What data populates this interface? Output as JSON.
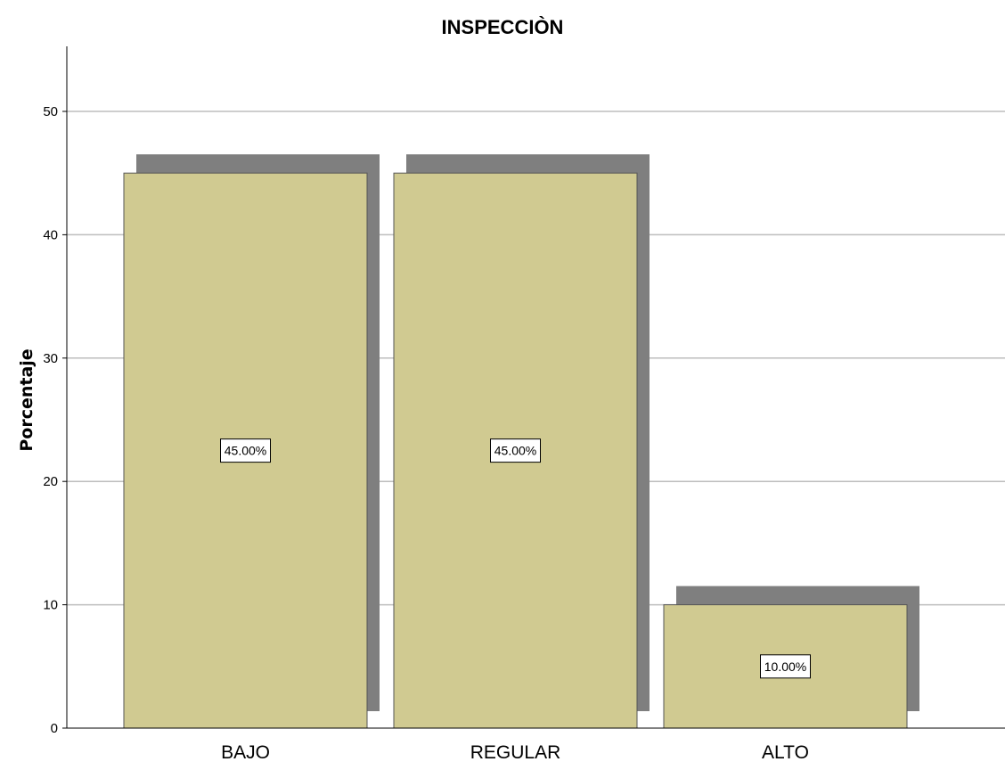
{
  "chart_data": {
    "type": "bar",
    "title": "INSPECCIÒN",
    "xlabel": "",
    "ylabel": "Porcentaje",
    "categories": [
      "BAJO",
      "REGULAR",
      "ALTO"
    ],
    "values": [
      45,
      45,
      10
    ],
    "data_labels": [
      "45.00%",
      "45.00%",
      "10.00%"
    ],
    "yticks": [
      0,
      10,
      20,
      30,
      40,
      50
    ],
    "ylim": [
      0,
      55
    ],
    "grid": true,
    "bar_color": "#d0ca91",
    "shadow_color": "#7f7f7f",
    "legend": "none"
  }
}
